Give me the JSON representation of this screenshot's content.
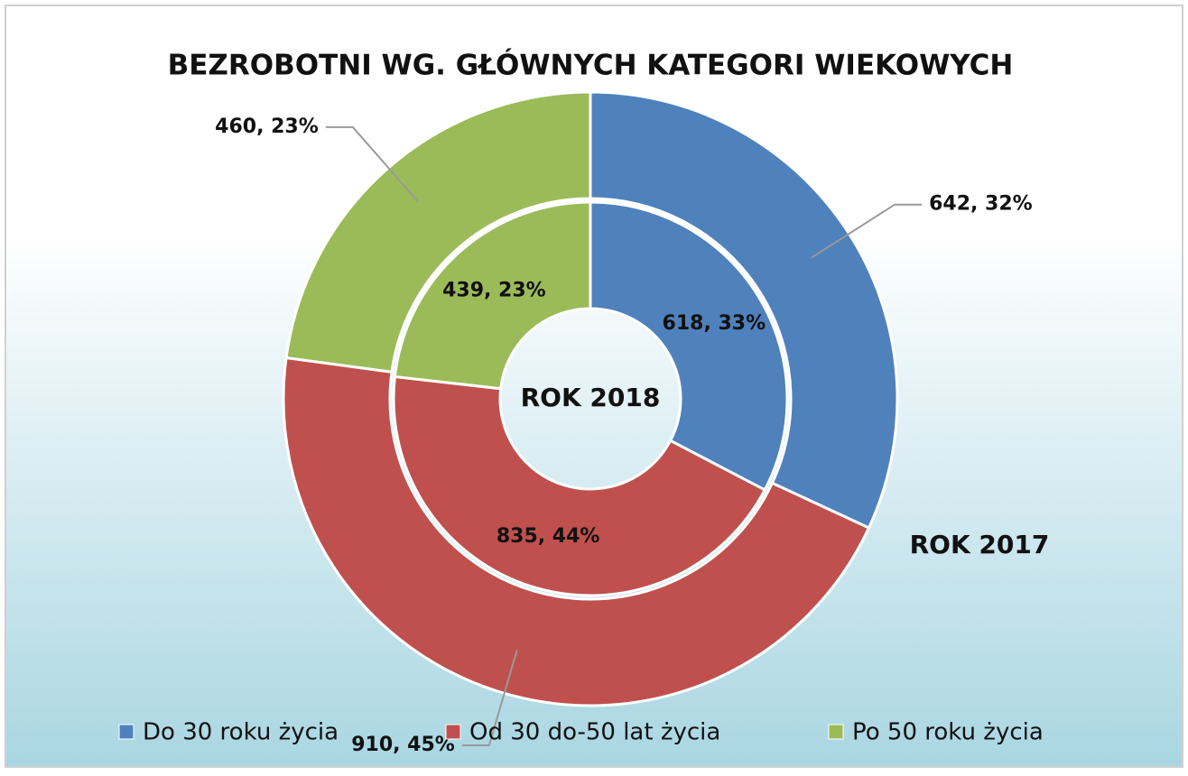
{
  "chart_data": {
    "type": "doughnut",
    "title": "BEZROBOTNI WG. GŁÓWNYCH KATEGORI WIEKOWYCH",
    "categories": [
      "Do 30 roku życia",
      "Od 30 do-50 lat życia",
      "Po 50 roku życia"
    ],
    "colors": [
      "#4f81bd",
      "#c0504d",
      "#9bbb59"
    ],
    "series": [
      {
        "name": "ROK 2017",
        "values": [
          642,
          910,
          460
        ],
        "value_labels": [
          "642, 32%",
          "910, 45%",
          "460, 23%"
        ]
      },
      {
        "name": "ROK 2018",
        "values": [
          618,
          835,
          439
        ],
        "value_labels": [
          "618, 33%",
          "835, 44%",
          "439, 23%"
        ]
      }
    ]
  }
}
